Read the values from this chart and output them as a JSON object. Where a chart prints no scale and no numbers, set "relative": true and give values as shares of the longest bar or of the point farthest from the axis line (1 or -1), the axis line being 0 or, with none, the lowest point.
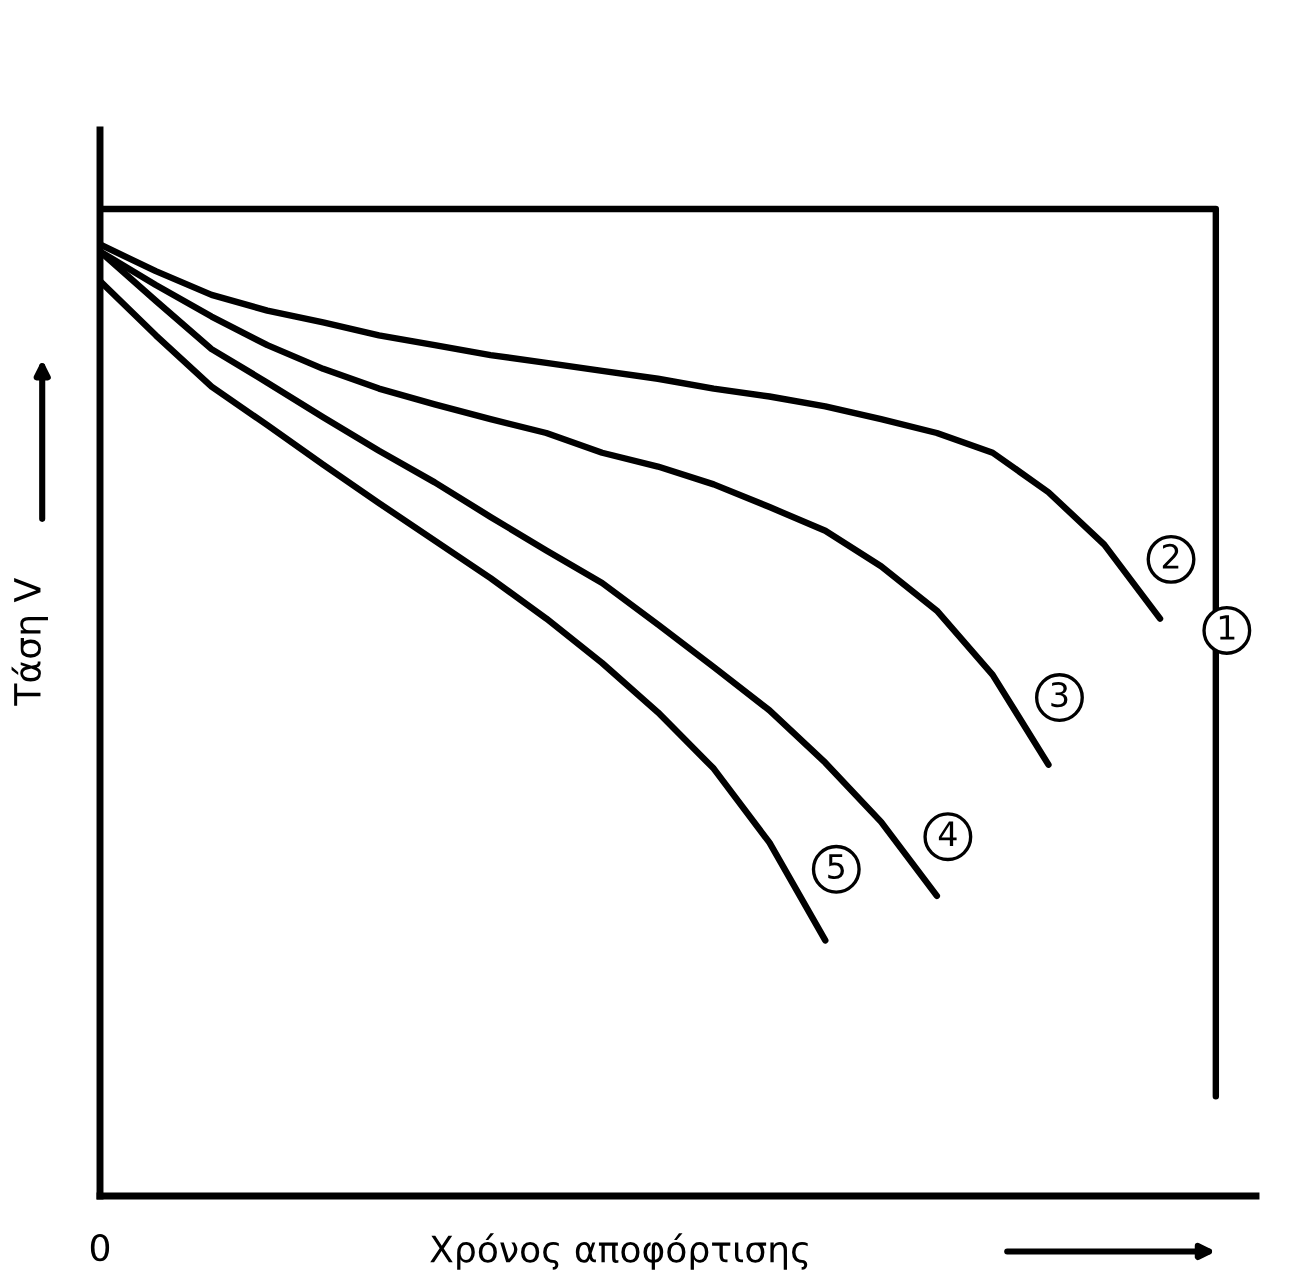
{
  "chart_data": {
    "type": "line",
    "relative": true,
    "xlabel": "Χρόνος αποφόρτισης",
    "ylabel": "Τάση V",
    "annotations": [
      "0"
    ],
    "legend": false,
    "marker": "none",
    "line_style": "solid",
    "categories": [
      null,
      null,
      null,
      null,
      null,
      null,
      null,
      null,
      null,
      null,
      null,
      null,
      null,
      null,
      null,
      null,
      null,
      null,
      null,
      null,
      null
    ],
    "series": [
      {
        "name": "1",
        "type": "step",
        "color": "#000000",
        "values": [
          1,
          1,
          1,
          1,
          1,
          1,
          1,
          1,
          1,
          1,
          1,
          1,
          1,
          1,
          1,
          1,
          1,
          1,
          1,
          1,
          0.101
        ]
      },
      {
        "name": "2",
        "color": "#000000",
        "values": [
          0.964,
          0.937,
          0.913,
          0.897,
          0.885,
          0.872,
          0.862,
          0.852,
          0.844,
          0.836,
          0.828,
          0.818,
          0.81,
          0.8,
          0.787,
          0.773,
          0.753,
          0.713,
          0.66,
          0.585,
          null
        ]
      },
      {
        "name": "3",
        "color": "#000000",
        "values": [
          0.957,
          0.923,
          0.891,
          0.862,
          0.838,
          0.818,
          0.802,
          0.787,
          0.773,
          0.753,
          0.739,
          0.721,
          0.698,
          0.674,
          0.638,
          0.593,
          0.528,
          0.437,
          null,
          null,
          null
        ]
      },
      {
        "name": "4",
        "color": "#000000",
        "values": [
          0.957,
          0.907,
          0.858,
          0.824,
          0.789,
          0.755,
          0.723,
          0.688,
          0.654,
          0.621,
          0.579,
          0.536,
          0.492,
          0.439,
          0.379,
          0.304,
          null,
          null,
          null,
          null,
          null
        ]
      },
      {
        "name": "5",
        "color": "#000000",
        "values": [
          0.927,
          0.872,
          0.82,
          0.781,
          0.741,
          0.702,
          0.664,
          0.626,
          0.585,
          0.54,
          0.49,
          0.433,
          0.358,
          0.259,
          null,
          null,
          null,
          null,
          null,
          null,
          null
        ]
      }
    ]
  }
}
